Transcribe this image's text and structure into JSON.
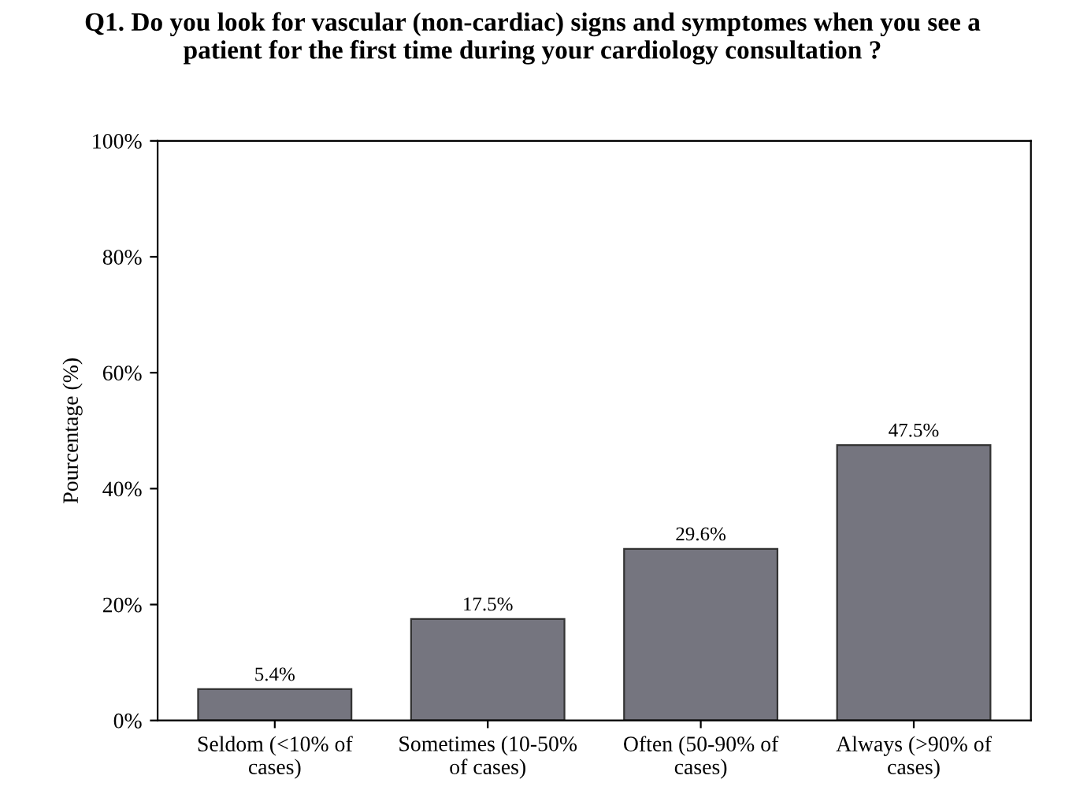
{
  "chart_data": {
    "type": "bar",
    "title": "Q1. Do you look for vascular (non-cardiac) signs and symptomes when you see a\npatient for the first time during your cardiology consultation ?",
    "ylabel": "Pourcentage (%)",
    "categories": [
      "Seldom (<10% of\ncases)",
      "Sometimes (10-50%\nof cases)",
      "Often (50-90% of\ncases)",
      "Always (>90% of\ncases)"
    ],
    "values": [
      5.4,
      17.5,
      29.6,
      47.5
    ],
    "value_labels": [
      "5.4%",
      "17.5%",
      "29.6%",
      "47.5%"
    ],
    "color": "#75757f",
    "ylim": [
      0,
      100
    ],
    "yticks": [
      {
        "value": 0,
        "label": "0%"
      },
      {
        "value": 20,
        "label": "20%"
      },
      {
        "value": 40,
        "label": "40%"
      },
      {
        "value": 60,
        "label": "60%"
      },
      {
        "value": 80,
        "label": "80%"
      },
      {
        "value": 100,
        "label": "100%"
      }
    ],
    "grid": false
  }
}
